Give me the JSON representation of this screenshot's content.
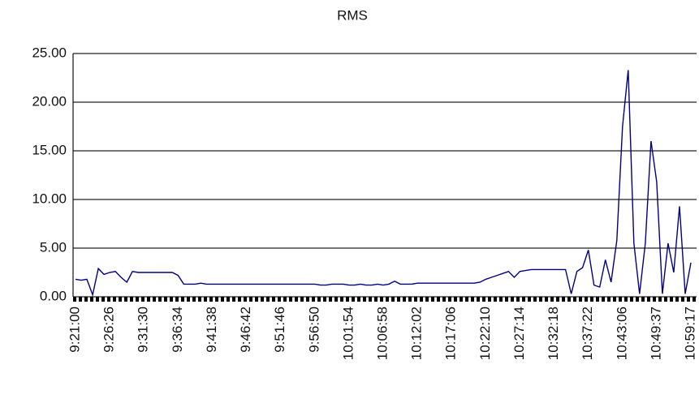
{
  "chart_data": {
    "type": "line",
    "title": "RMS",
    "categories": [
      "9:21:00",
      null,
      null,
      null,
      null,
      null,
      "9:26:26",
      null,
      null,
      null,
      null,
      null,
      "9:31:30",
      null,
      null,
      null,
      null,
      null,
      "9:36:34",
      null,
      null,
      null,
      null,
      null,
      "9:41:38",
      null,
      null,
      null,
      null,
      null,
      "9:46:42",
      null,
      null,
      null,
      null,
      null,
      "9:51:46",
      null,
      null,
      null,
      null,
      null,
      "9:56:50",
      null,
      null,
      null,
      null,
      null,
      "10:01:54",
      null,
      null,
      null,
      null,
      null,
      "10:06:58",
      null,
      null,
      null,
      null,
      null,
      "10:12:02",
      null,
      null,
      null,
      null,
      null,
      "10:17:06",
      null,
      null,
      null,
      null,
      null,
      "10:22:10",
      null,
      null,
      null,
      null,
      null,
      "10:27:14",
      null,
      null,
      null,
      null,
      null,
      "10:32:18",
      null,
      null,
      null,
      null,
      null,
      "10:37:22",
      null,
      null,
      null,
      null,
      null,
      "10:43:06",
      null,
      null,
      null,
      null,
      null,
      "10:49:37",
      null,
      null,
      null,
      null,
      null,
      "10:59:17"
    ],
    "series": [
      {
        "name": "RMS",
        "color": "#000080",
        "values": [
          1.8,
          1.7,
          1.8,
          0.2,
          2.9,
          2.3,
          2.5,
          2.6,
          2.0,
          1.5,
          2.6,
          2.5,
          2.5,
          2.5,
          2.5,
          2.5,
          2.5,
          2.5,
          2.2,
          1.3,
          1.3,
          1.3,
          1.4,
          1.3,
          1.3,
          1.3,
          1.3,
          1.3,
          1.3,
          1.3,
          1.3,
          1.3,
          1.3,
          1.3,
          1.3,
          1.3,
          1.3,
          1.3,
          1.3,
          1.3,
          1.3,
          1.3,
          1.3,
          1.2,
          1.2,
          1.3,
          1.3,
          1.3,
          1.2,
          1.2,
          1.3,
          1.2,
          1.2,
          1.3,
          1.2,
          1.3,
          1.6,
          1.3,
          1.3,
          1.3,
          1.4,
          1.4,
          1.4,
          1.4,
          1.4,
          1.4,
          1.4,
          1.4,
          1.4,
          1.4,
          1.4,
          1.5,
          1.8,
          2.0,
          2.2,
          2.4,
          2.6,
          2.0,
          2.6,
          2.7,
          2.8,
          2.8,
          2.8,
          2.8,
          2.8,
          2.8,
          2.8,
          0.3,
          2.6,
          3.0,
          4.8,
          1.2,
          1.0,
          3.8,
          1.5,
          5.8,
          17.5,
          23.3,
          5.5,
          0.3,
          5.5,
          16.0,
          11.8,
          0.3,
          5.5,
          2.5,
          9.3,
          0.3,
          3.5
        ]
      }
    ],
    "ylim": [
      0,
      25
    ],
    "yticks": [
      {
        "value": 0,
        "label": "0.00"
      },
      {
        "value": 5,
        "label": "5.00"
      },
      {
        "value": 10,
        "label": "10.00"
      },
      {
        "value": 15,
        "label": "15.00"
      },
      {
        "value": 20,
        "label": "20.00"
      },
      {
        "value": 25,
        "label": "25.00"
      }
    ],
    "grid": true
  }
}
